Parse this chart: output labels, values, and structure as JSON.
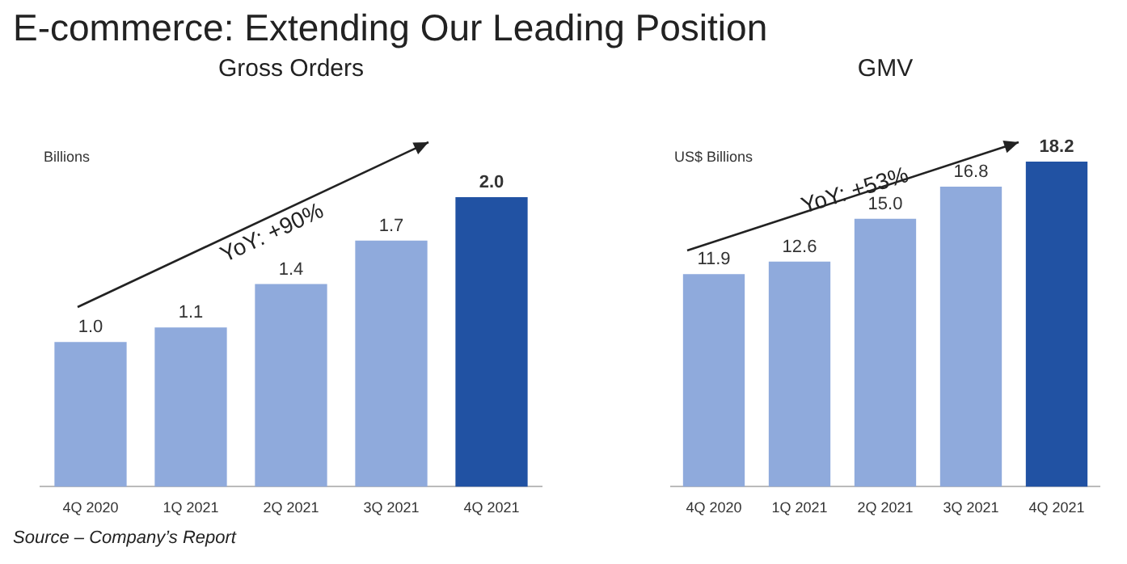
{
  "chart_data": [
    {
      "type": "bar",
      "title": "Gross Orders",
      "ylabel": "Billions",
      "categories": [
        "4Q 2020",
        "1Q 2021",
        "2Q 2021",
        "3Q 2021",
        "4Q 2021"
      ],
      "values": [
        1.0,
        1.1,
        1.4,
        1.7,
        2.0
      ],
      "value_labels": [
        "1.0",
        "1.1",
        "1.4",
        "1.7",
        "2.0"
      ],
      "colors": [
        "#8faadc",
        "#8faadc",
        "#8faadc",
        "#8faadc",
        "#2152a3"
      ],
      "tick_labels": "x",
      "grid": false,
      "legend": false,
      "annotations": [
        "E-commerce: Extending Our Leading Position",
        "YoY: +90%",
        "Source – Company’s Report"
      ]
    },
    {
      "type": "bar",
      "title": "GMV",
      "ylabel": "US$ Billions",
      "categories": [
        "4Q 2020",
        "1Q 2021",
        "2Q 2021",
        "3Q 2021",
        "4Q 2021"
      ],
      "values": [
        11.9,
        12.6,
        15.0,
        16.8,
        18.2
      ],
      "value_labels": [
        "11.9",
        "12.6",
        "15.0",
        "16.8",
        "18.2"
      ],
      "colors": [
        "#8faadc",
        "#8faadc",
        "#8faadc",
        "#8faadc",
        "#2152a3"
      ],
      "tick_labels": "x",
      "grid": false,
      "legend": false,
      "annotations": [
        "YoY: +53%"
      ]
    }
  ]
}
